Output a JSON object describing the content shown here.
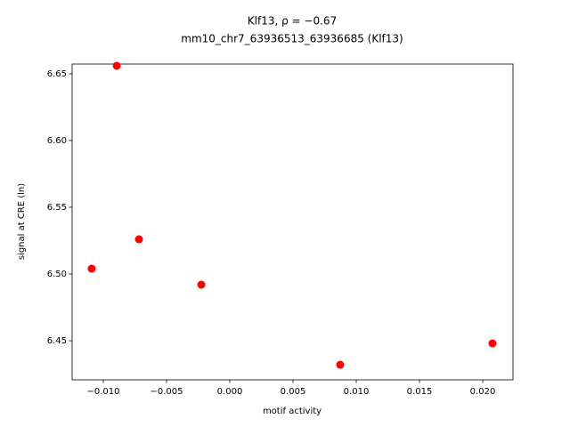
{
  "chart_data": {
    "type": "scatter",
    "title": "Klf13, ρ = −0.67",
    "subtitle": "mm10_chr7_63936513_63936685 (Klf13)",
    "x_label": "motif activity",
    "y_label": "signal at CRE (ln)",
    "color": "red",
    "x": [
      -0.01092,
      -0.00894,
      -0.00718,
      -0.00225,
      0.00873,
      0.02077
    ],
    "y": [
      6.504,
      6.656,
      6.526,
      6.492,
      6.432,
      6.448
    ],
    "xlim": [
      -0.012465,
      0.022394
    ],
    "ylim": [
      6.4207,
      6.6573
    ],
    "xticks": [
      {
        "value": -0.01,
        "label": "−0.010"
      },
      {
        "value": -0.005,
        "label": "−0.005"
      },
      {
        "value": 0,
        "label": "0.000"
      },
      0.005,
      {
        "value": 0.01,
        "label": "0.010"
      },
      0.015,
      {
        "value": 0.02,
        "label": "0.020"
      }
    ],
    "yticks": [
      6.45,
      {
        "value": 6.5,
        "label": "6.50"
      },
      6.55,
      {
        "value": 6.6,
        "label": "6.60"
      },
      6.65
    ],
    "grid": false
  }
}
